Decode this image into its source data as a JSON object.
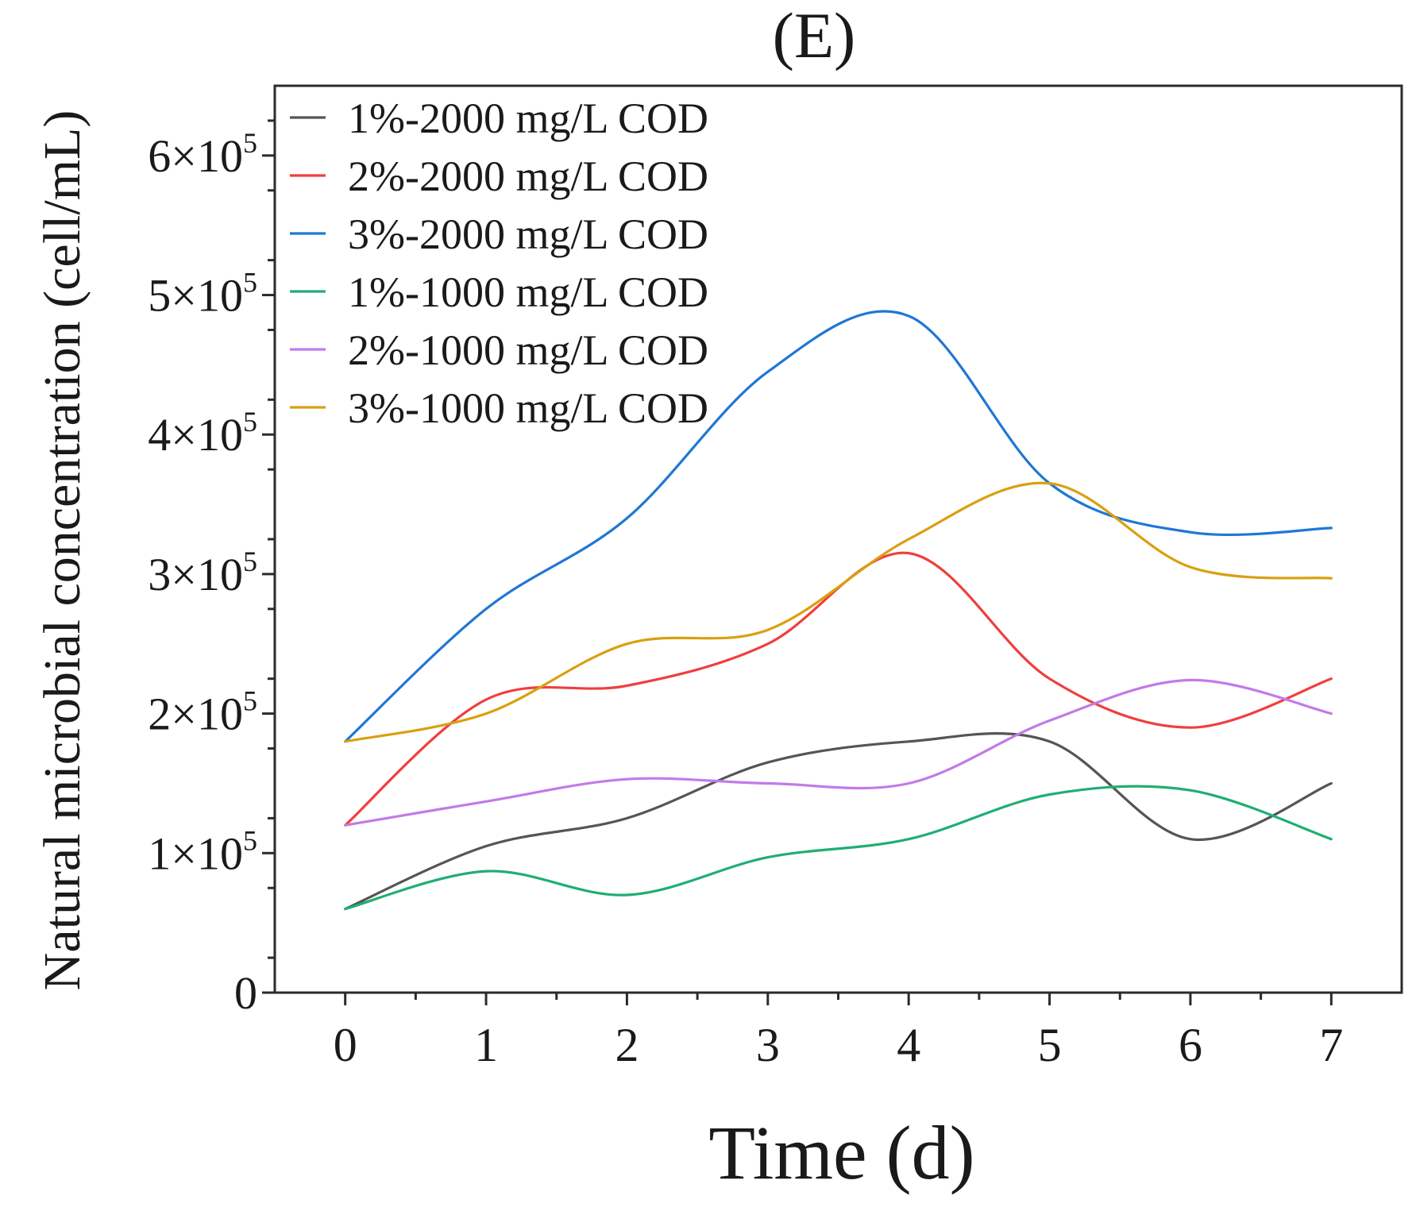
{
  "chart_data": {
    "type": "line",
    "title": "(E)",
    "xlabel": "Time (d)",
    "ylabel": "Natural microbial concentration (cell/mL)",
    "x": [
      0,
      1,
      2,
      3,
      4,
      5,
      6,
      7
    ],
    "xlim": [
      -0.5,
      7.5
    ],
    "ylim": [
      0,
      650000
    ],
    "x_ticks": [
      "0",
      "1",
      "2",
      "3",
      "4",
      "5",
      "6",
      "7"
    ],
    "y_ticks": [
      {
        "value": 0,
        "base": "0",
        "exp": ""
      },
      {
        "value": 100000,
        "base": "1×10",
        "exp": "5"
      },
      {
        "value": 200000,
        "base": "2×10",
        "exp": "5"
      },
      {
        "value": 300000,
        "base": "3×10",
        "exp": "5"
      },
      {
        "value": 400000,
        "base": "4×10",
        "exp": "5"
      },
      {
        "value": 500000,
        "base": "5×10",
        "exp": "5"
      },
      {
        "value": 600000,
        "base": "6×10",
        "exp": "5"
      }
    ],
    "legend_position": "top-left",
    "series": [
      {
        "name": "1%-2000 mg/L COD",
        "color": "#555555",
        "values": [
          60000,
          105000,
          125000,
          165000,
          180000,
          180000,
          110000,
          150000
        ]
      },
      {
        "name": "2%-2000 mg/L COD",
        "color": "#f03e3e",
        "values": [
          120000,
          210000,
          220000,
          250000,
          315000,
          225000,
          190000,
          225000
        ]
      },
      {
        "name": "3%-2000 mg/L COD",
        "color": "#1f77d4",
        "values": [
          180000,
          275000,
          340000,
          445000,
          485000,
          365000,
          330000,
          333000
        ]
      },
      {
        "name": "1%-1000 mg/L COD",
        "color": "#1fae74",
        "values": [
          60000,
          87000,
          70000,
          97000,
          110000,
          142000,
          145000,
          110000
        ]
      },
      {
        "name": "2%-1000 mg/L COD",
        "color": "#c27ae8",
        "values": [
          120000,
          137000,
          153000,
          150000,
          150000,
          195000,
          224000,
          200000
        ]
      },
      {
        "name": "3%-1000 mg/L COD",
        "color": "#d9a00f",
        "values": [
          180000,
          200000,
          250000,
          260000,
          325000,
          365000,
          305000,
          297000
        ]
      }
    ]
  }
}
